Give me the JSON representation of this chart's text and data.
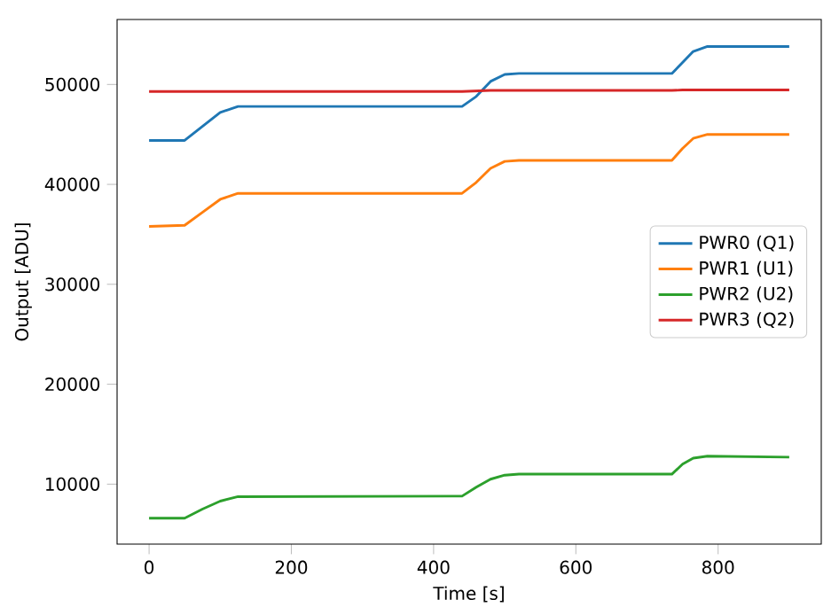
{
  "chart_data": {
    "type": "line",
    "xlabel": "Time [s]",
    "ylabel": "Output [ADU]",
    "xlim": [
      -45,
      945
    ],
    "ylim": [
      4000,
      56500
    ],
    "xticks": [
      0,
      200,
      400,
      600,
      800
    ],
    "yticks": [
      10000,
      20000,
      30000,
      40000,
      50000
    ],
    "legend": "right",
    "grid": false,
    "x": [
      0,
      50,
      75,
      100,
      125,
      440,
      460,
      480,
      500,
      520,
      735,
      750,
      765,
      785,
      900
    ],
    "series": [
      {
        "name": "PWR0 (Q1)",
        "color": "#1f77b4",
        "values": [
          44400,
          44400,
          45800,
          47200,
          47800,
          47800,
          48800,
          50300,
          51000,
          51100,
          51100,
          52200,
          53300,
          53800,
          53800
        ]
      },
      {
        "name": "PWR1 (U1)",
        "color": "#ff7f0e",
        "values": [
          35800,
          35900,
          37200,
          38500,
          39100,
          39100,
          40200,
          41600,
          42300,
          42400,
          42400,
          43600,
          44600,
          45000,
          45000
        ]
      },
      {
        "name": "PWR2 (U2)",
        "color": "#2ca02c",
        "values": [
          6600,
          6600,
          7500,
          8300,
          8750,
          8800,
          9700,
          10500,
          10900,
          11000,
          11000,
          12000,
          12600,
          12800,
          12700
        ]
      },
      {
        "name": "PWR3 (Q2)",
        "color": "#d62728",
        "values": [
          49300,
          49300,
          49300,
          49300,
          49300,
          49300,
          49350,
          49400,
          49400,
          49400,
          49400,
          49450,
          49450,
          49450,
          49450
        ]
      }
    ]
  }
}
